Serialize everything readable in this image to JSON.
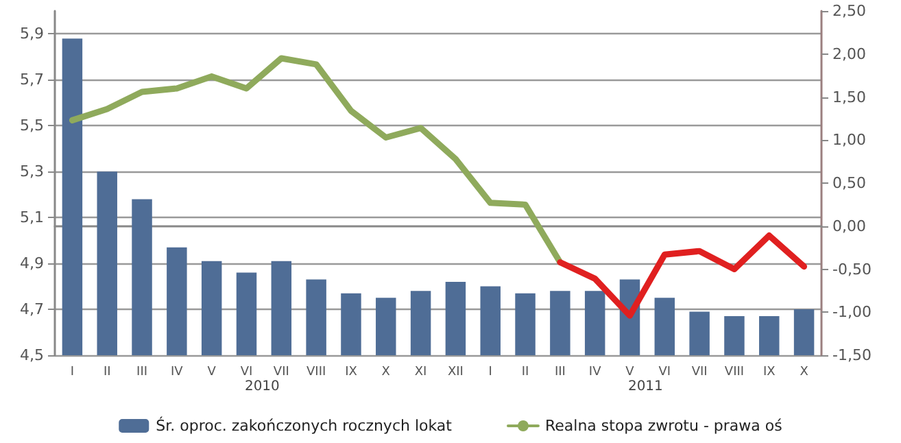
{
  "chart_data": {
    "type": "bar",
    "categories": [
      "I",
      "II",
      "III",
      "IV",
      "V",
      "VI",
      "VII",
      "VIII",
      "IX",
      "X",
      "XI",
      "XII",
      "I",
      "II",
      "III",
      "IV",
      "V",
      "VI",
      "VII",
      "VIII",
      "IX",
      "X"
    ],
    "series": [
      {
        "name": "Śr. oproc. zakończonych rocznych lokat",
        "color": "#4f6d96",
        "values": [
          5.88,
          5.3,
          5.18,
          4.97,
          4.91,
          4.86,
          4.91,
          4.83,
          4.77,
          4.75,
          4.78,
          4.82,
          4.8,
          4.77,
          4.78,
          4.78,
          4.83,
          4.75,
          4.69,
          4.67,
          4.67,
          4.7
        ]
      },
      {
        "name": "Realna stopa zwrotu - prawa oś",
        "type": "line",
        "axis": "y2",
        "color": "#8faa5c",
        "values": [
          1.23,
          1.36,
          1.56,
          1.6,
          1.74,
          1.6,
          1.95,
          1.88,
          1.34,
          1.03,
          1.14,
          0.78,
          0.27,
          0.25,
          -0.42,
          null,
          null,
          null,
          null,
          null,
          null,
          null
        ]
      },
      {
        "type": "line",
        "axis": "y2",
        "color": "#e02020",
        "values": [
          null,
          null,
          null,
          null,
          null,
          null,
          null,
          null,
          null,
          null,
          null,
          null,
          null,
          null,
          -0.42,
          -0.61,
          -1.04,
          -0.33,
          -0.29,
          -0.5,
          -0.11,
          -0.47
        ]
      }
    ],
    "ylim": [
      4.5,
      6.0
    ],
    "yticks": [
      {
        "value": 4.5,
        "label": "4,5"
      },
      {
        "value": 4.7,
        "label": "4,7"
      },
      {
        "value": 4.9,
        "label": "4,9"
      },
      {
        "value": 5.1,
        "label": "5,1"
      },
      {
        "value": 5.3,
        "label": "5,3"
      },
      {
        "value": 5.5,
        "label": "5,5"
      },
      {
        "value": 5.7,
        "label": "5,7"
      },
      {
        "value": 5.9,
        "label": "5,9"
      }
    ],
    "y2lim": [
      -1.5,
      2.5
    ],
    "y2ticks": [
      {
        "value": -1.5,
        "label": "-1,50"
      },
      {
        "value": -1.0,
        "label": "-1,00"
      },
      {
        "value": -0.5,
        "label": "-0,50"
      },
      {
        "value": 0,
        "label": "0,00"
      },
      {
        "value": 0.5,
        "label": "0,50"
      },
      {
        "value": 1.0,
        "label": "1,00"
      },
      {
        "value": 1.5,
        "label": "1,50"
      },
      {
        "value": 2.0,
        "label": "2,00"
      },
      {
        "value": 2.5,
        "label": "2,50"
      }
    ],
    "annotations": [
      "2010",
      "2011"
    ],
    "grid": "y",
    "legend": "bottom",
    "marker": "none"
  }
}
